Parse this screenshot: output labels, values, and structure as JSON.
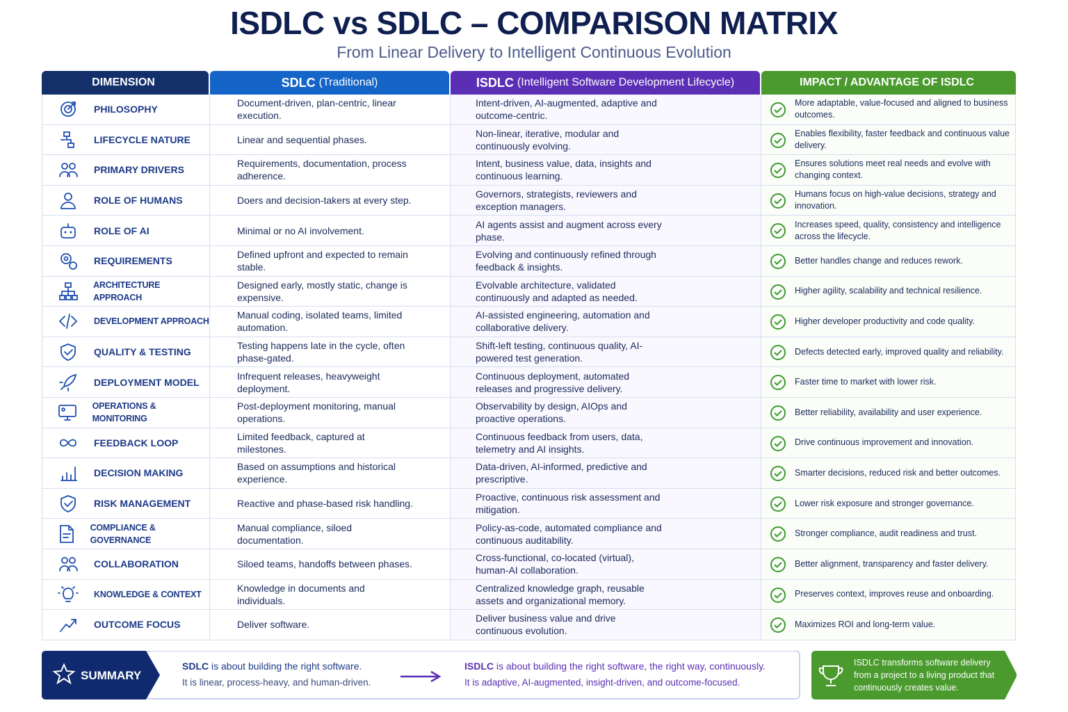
{
  "title": "ISDLC vs SDLC – COMPARISON MATRIX",
  "subtitle": "From Linear Delivery to Intelligent Continuous Evolution",
  "table": {
    "headers": [
      {
        "main": "DIMENSION"
      },
      {
        "main": "SDLC",
        "sub": "(Traditional)"
      },
      {
        "main": "ISDLC",
        "sub": "(Intelligent Software Development Lifecycle)"
      },
      {
        "main": "IMPACT / ADVANTAGE OF ISDLC"
      }
    ],
    "rows": [
      [
        "PHILOSOPHY",
        "Document-driven, plan-centric, linear execution.",
        "Intent-driven, AI-augmented, adaptive and outcome-centric.",
        "More adaptable, value-focused and aligned to business outcomes."
      ],
      [
        "LIFECYCLE NATURE",
        "Linear and sequential phases.",
        "Non-linear, iterative, modular and continuously evolving.",
        "Enables flexibility, faster feedback and continuous value delivery."
      ],
      [
        "PRIMARY DRIVERS",
        "Requirements, documentation, process adherence.",
        "Intent, business value, data, insights and continuous learning.",
        "Ensures solutions meet real needs and evolve with changing context."
      ],
      [
        "ROLE OF HUMANS",
        "Doers and decision-takers at every step.",
        "Governors, strategists, reviewers and exception managers.",
        "Humans focus on high-value decisions, strategy and innovation."
      ],
      [
        "ROLE OF AI",
        "Minimal or no AI involvement.",
        "AI agents assist and augment across every phase.",
        "Increases speed, quality, consistency and intelligence across the lifecycle."
      ],
      [
        "REQUIREMENTS",
        "Defined upfront and expected to remain stable.",
        "Evolving and continuously refined through feedback & insights.",
        "Better handles change and reduces rework."
      ],
      [
        "ARCHITECTURE APPROACH",
        "Designed early, mostly static, change is expensive.",
        "Evolvable architecture, validated continuously and adapted as needed.",
        "Higher agility, scalability and technical resilience."
      ],
      [
        "DEVELOPMENT APPROACH",
        "Manual coding, isolated teams, limited automation.",
        "AI-assisted engineering, automation and collaborative delivery.",
        "Higher developer productivity and code quality."
      ],
      [
        "QUALITY & TESTING",
        "Testing happens late in the cycle, often phase-gated.",
        "Shift-left testing, continuous quality, AI-powered test generation.",
        "Defects detected early, improved quality and reliability."
      ],
      [
        "DEPLOYMENT MODEL",
        "Infrequent releases, heavyweight deployment.",
        "Continuous deployment, automated releases and progressive delivery.",
        "Faster time to market with lower risk."
      ],
      [
        "OPERATIONS & MONITORING",
        "Post-deployment monitoring, manual operations.",
        "Observability by design, AIOps and proactive operations.",
        "Better reliability, availability and user experience."
      ],
      [
        "FEEDBACK LOOP",
        "Limited feedback, captured at milestones.",
        "Continuous feedback from users, data, telemetry and AI insights.",
        "Drive continuous improvement and innovation."
      ],
      [
        "DECISION MAKING",
        "Based on assumptions and historical experience.",
        "Data-driven, AI-informed, predictive and prescriptive.",
        "Smarter decisions, reduced risk and better outcomes."
      ],
      [
        "RISK MANAGEMENT",
        "Reactive and phase-based risk handling.",
        "Proactive, continuous risk assessment and mitigation.",
        "Lower risk exposure and stronger governance."
      ],
      [
        "COMPLIANCE & GOVERNANCE",
        "Manual compliance, siloed documentation.",
        "Policy-as-code, automated compliance and continuous auditability.",
        "Stronger compliance, audit readiness and trust."
      ],
      [
        "COLLABORATION",
        "Siloed teams, handoffs between phases.",
        "Cross-functional, co-located (virtual), human-AI collaboration.",
        "Better alignment, transparency and faster delivery."
      ],
      [
        "KNOWLEDGE & CONTEXT",
        "Knowledge in documents and individuals.",
        "Centralized knowledge graph, reusable assets and organizational memory.",
        "Preserves context, improves reuse and onboarding."
      ],
      [
        "OUTCOME FOCUS",
        "Deliver software.",
        "Deliver business value and drive continuous evolution.",
        "Maximizes ROI and long-term value."
      ]
    ]
  },
  "summary": {
    "label": "SUMMARY",
    "sdlc": {
      "lead": "SDLC",
      "text": "is about building the right software.",
      "detail": "It is linear, process-heavy, and human-driven."
    },
    "isdlc": {
      "lead": "ISDLC",
      "text": "is about building the right software, the right way, continuously.",
      "detail": "It is adaptive, AI-augmented, insight-driven, and outcome-focused."
    },
    "impact": "ISDLC transforms software delivery from a project to a living product that continuously creates value."
  }
}
